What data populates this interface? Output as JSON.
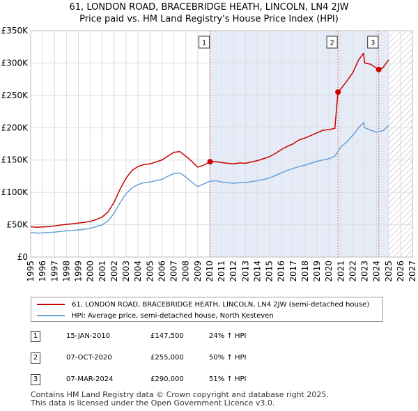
{
  "title": {
    "line1": "61, LONDON ROAD, BRACEBRIDGE HEATH, LINCOLN, LN4 2JW",
    "line2": "Price paid vs. HM Land Registry's House Price Index (HPI)"
  },
  "colors": {
    "property": "#cc0000",
    "hpi": "#6a9fd4",
    "shade": "#e6ecf7",
    "grid": "#dddddd",
    "vline": "#dd6666",
    "hatch": "#aaaaaa"
  },
  "chart_data": {
    "type": "line",
    "title": "Price paid vs. HM Land Registry's House Price Index (HPI)",
    "xlim": [
      1995,
      2027
    ],
    "ylim": [
      0,
      350000
    ],
    "x_ticks": [
      "1995",
      "1996",
      "1997",
      "1998",
      "1999",
      "2000",
      "2001",
      "2002",
      "2003",
      "2004",
      "2005",
      "2006",
      "2007",
      "2008",
      "2009",
      "2010",
      "2011",
      "2012",
      "2013",
      "2014",
      "2015",
      "2016",
      "2017",
      "2018",
      "2019",
      "2020",
      "2021",
      "2022",
      "2023",
      "2024",
      "2025",
      "2026",
      "2027"
    ],
    "y_ticks": [
      {
        "value": 0,
        "label": "£0"
      },
      {
        "value": 50000,
        "label": "£50K"
      },
      {
        "value": 100000,
        "label": "£100K"
      },
      {
        "value": 150000,
        "label": "£150K"
      },
      {
        "value": 200000,
        "label": "£200K"
      },
      {
        "value": 250000,
        "label": "£250K"
      },
      {
        "value": 300000,
        "label": "£300K"
      },
      {
        "value": 350000,
        "label": "£350K"
      }
    ],
    "shaded_range": [
      2010.04,
      2025.0
    ],
    "hatched_from": 2025.0,
    "series": [
      {
        "name": "61, LONDON ROAD, BRACEBRIDGE HEATH, LINCOLN, LN4 2JW (semi-detached house)",
        "color": "#cc0000",
        "x": [
          1995.0,
          1995.5,
          1996.0,
          1996.5,
          1997.0,
          1997.5,
          1998.0,
          1998.5,
          1999.0,
          1999.5,
          2000.0,
          2000.5,
          2001.0,
          2001.5,
          2002.0,
          2002.5,
          2003.0,
          2003.5,
          2004.0,
          2004.5,
          2005.0,
          2005.5,
          2006.0,
          2006.5,
          2007.0,
          2007.5,
          2008.0,
          2008.5,
          2009.0,
          2009.5,
          2010.04,
          2010.5,
          2011.0,
          2011.5,
          2012.0,
          2012.5,
          2013.0,
          2013.5,
          2014.0,
          2014.5,
          2015.0,
          2015.5,
          2016.0,
          2016.5,
          2017.0,
          2017.5,
          2018.0,
          2018.5,
          2019.0,
          2019.5,
          2020.0,
          2020.5,
          2020.76,
          2021.0,
          2021.5,
          2022.0,
          2022.5,
          2022.9,
          2023.0,
          2023.5,
          2024.0,
          2024.18,
          2024.5,
          2025.0
        ],
        "values": [
          47000,
          46000,
          46500,
          47000,
          48000,
          49500,
          50500,
          51500,
          52500,
          53500,
          55000,
          58000,
          62000,
          70000,
          85000,
          105000,
          122000,
          134000,
          140000,
          143000,
          144000,
          147000,
          150000,
          156000,
          162000,
          163000,
          156000,
          148000,
          139000,
          142000,
          147500,
          147500,
          146000,
          145000,
          144000,
          145500,
          145000,
          147000,
          149000,
          152000,
          155000,
          160000,
          166000,
          171000,
          175000,
          181000,
          184000,
          188000,
          192000,
          196000,
          197000,
          199000,
          255000,
          260000,
          272000,
          285000,
          305000,
          315000,
          300000,
          298000,
          292000,
          290000,
          292000,
          305000
        ]
      },
      {
        "name": "HPI: Average price, semi-detached house, North Kesteven",
        "color": "#6a9fd4",
        "x": [
          1995.0,
          1995.5,
          1996.0,
          1996.5,
          1997.0,
          1997.5,
          1998.0,
          1998.5,
          1999.0,
          1999.5,
          2000.0,
          2000.5,
          2001.0,
          2001.5,
          2002.0,
          2002.5,
          2003.0,
          2003.5,
          2004.0,
          2004.5,
          2005.0,
          2005.5,
          2006.0,
          2006.5,
          2007.0,
          2007.5,
          2008.0,
          2008.5,
          2009.0,
          2009.5,
          2010.0,
          2010.5,
          2011.0,
          2011.5,
          2012.0,
          2012.5,
          2013.0,
          2013.5,
          2014.0,
          2014.5,
          2015.0,
          2015.5,
          2016.0,
          2016.5,
          2017.0,
          2017.5,
          2018.0,
          2018.5,
          2019.0,
          2019.5,
          2020.0,
          2020.5,
          2021.0,
          2021.5,
          2022.0,
          2022.5,
          2022.9,
          2023.0,
          2023.5,
          2024.0,
          2024.5,
          2025.0
        ],
        "values": [
          38000,
          37000,
          37500,
          38000,
          38500,
          39500,
          40500,
          41000,
          42000,
          43000,
          44500,
          47000,
          50000,
          56000,
          68000,
          84000,
          98000,
          107000,
          112000,
          115000,
          116000,
          118000,
          120000,
          125000,
          129000,
          130000,
          124000,
          116000,
          109000,
          113000,
          117000,
          118000,
          116000,
          115000,
          114000,
          115000,
          115000,
          116500,
          118000,
          120000,
          122000,
          126000,
          130000,
          134000,
          137000,
          140000,
          142000,
          145000,
          148000,
          150000,
          152000,
          156000,
          170000,
          178000,
          188000,
          200000,
          208000,
          200000,
          196000,
          193000,
          195000,
          203000
        ]
      }
    ],
    "sales": [
      {
        "num": "1",
        "x": 2010.04,
        "price": 147500,
        "date": "15-JAN-2010",
        "price_label": "£147,500",
        "hpi_label": "24% ↑ HPI"
      },
      {
        "num": "2",
        "x": 2020.76,
        "price": 255000,
        "date": "07-OCT-2020",
        "price_label": "£255,000",
        "hpi_label": "50% ↑ HPI"
      },
      {
        "num": "3",
        "x": 2024.18,
        "price": 290000,
        "date": "07-MAR-2024",
        "price_label": "£290,000",
        "hpi_label": "51% ↑ HPI"
      }
    ]
  },
  "legend": {
    "property": "61, LONDON ROAD, BRACEBRIDGE HEATH, LINCOLN, LN4 2JW (semi-detached house)",
    "hpi": "HPI: Average price, semi-detached house, North Kesteven"
  },
  "footer": {
    "line1": "Contains HM Land Registry data © Crown copyright and database right 2025.",
    "line2": "This data is licensed under the Open Government Licence v3.0."
  }
}
